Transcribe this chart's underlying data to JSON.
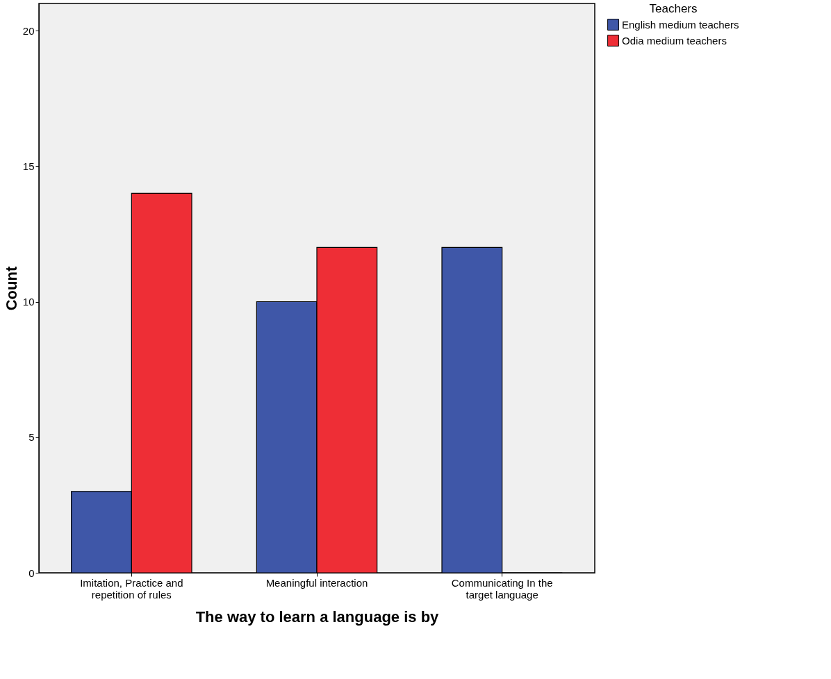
{
  "chart_data": {
    "type": "bar",
    "xlabel": "The way to learn a language is by",
    "ylabel": "Count",
    "legend_title": "Teachers",
    "categories": [
      "Imitation, Practice and repetition of rules",
      "Meaningful interaction",
      "Communicating In the target language"
    ],
    "series": [
      {
        "name": "English medium teachers",
        "color": "#3f57a8",
        "values": [
          3,
          10,
          12
        ]
      },
      {
        "name": "Odia medium teachers",
        "color": "#ee2e36",
        "values": [
          14,
          12,
          0
        ]
      }
    ],
    "ylim": [
      0,
      21
    ],
    "yticks": [
      0,
      5,
      10,
      15,
      20
    ],
    "grid": false,
    "legend": "top right"
  }
}
